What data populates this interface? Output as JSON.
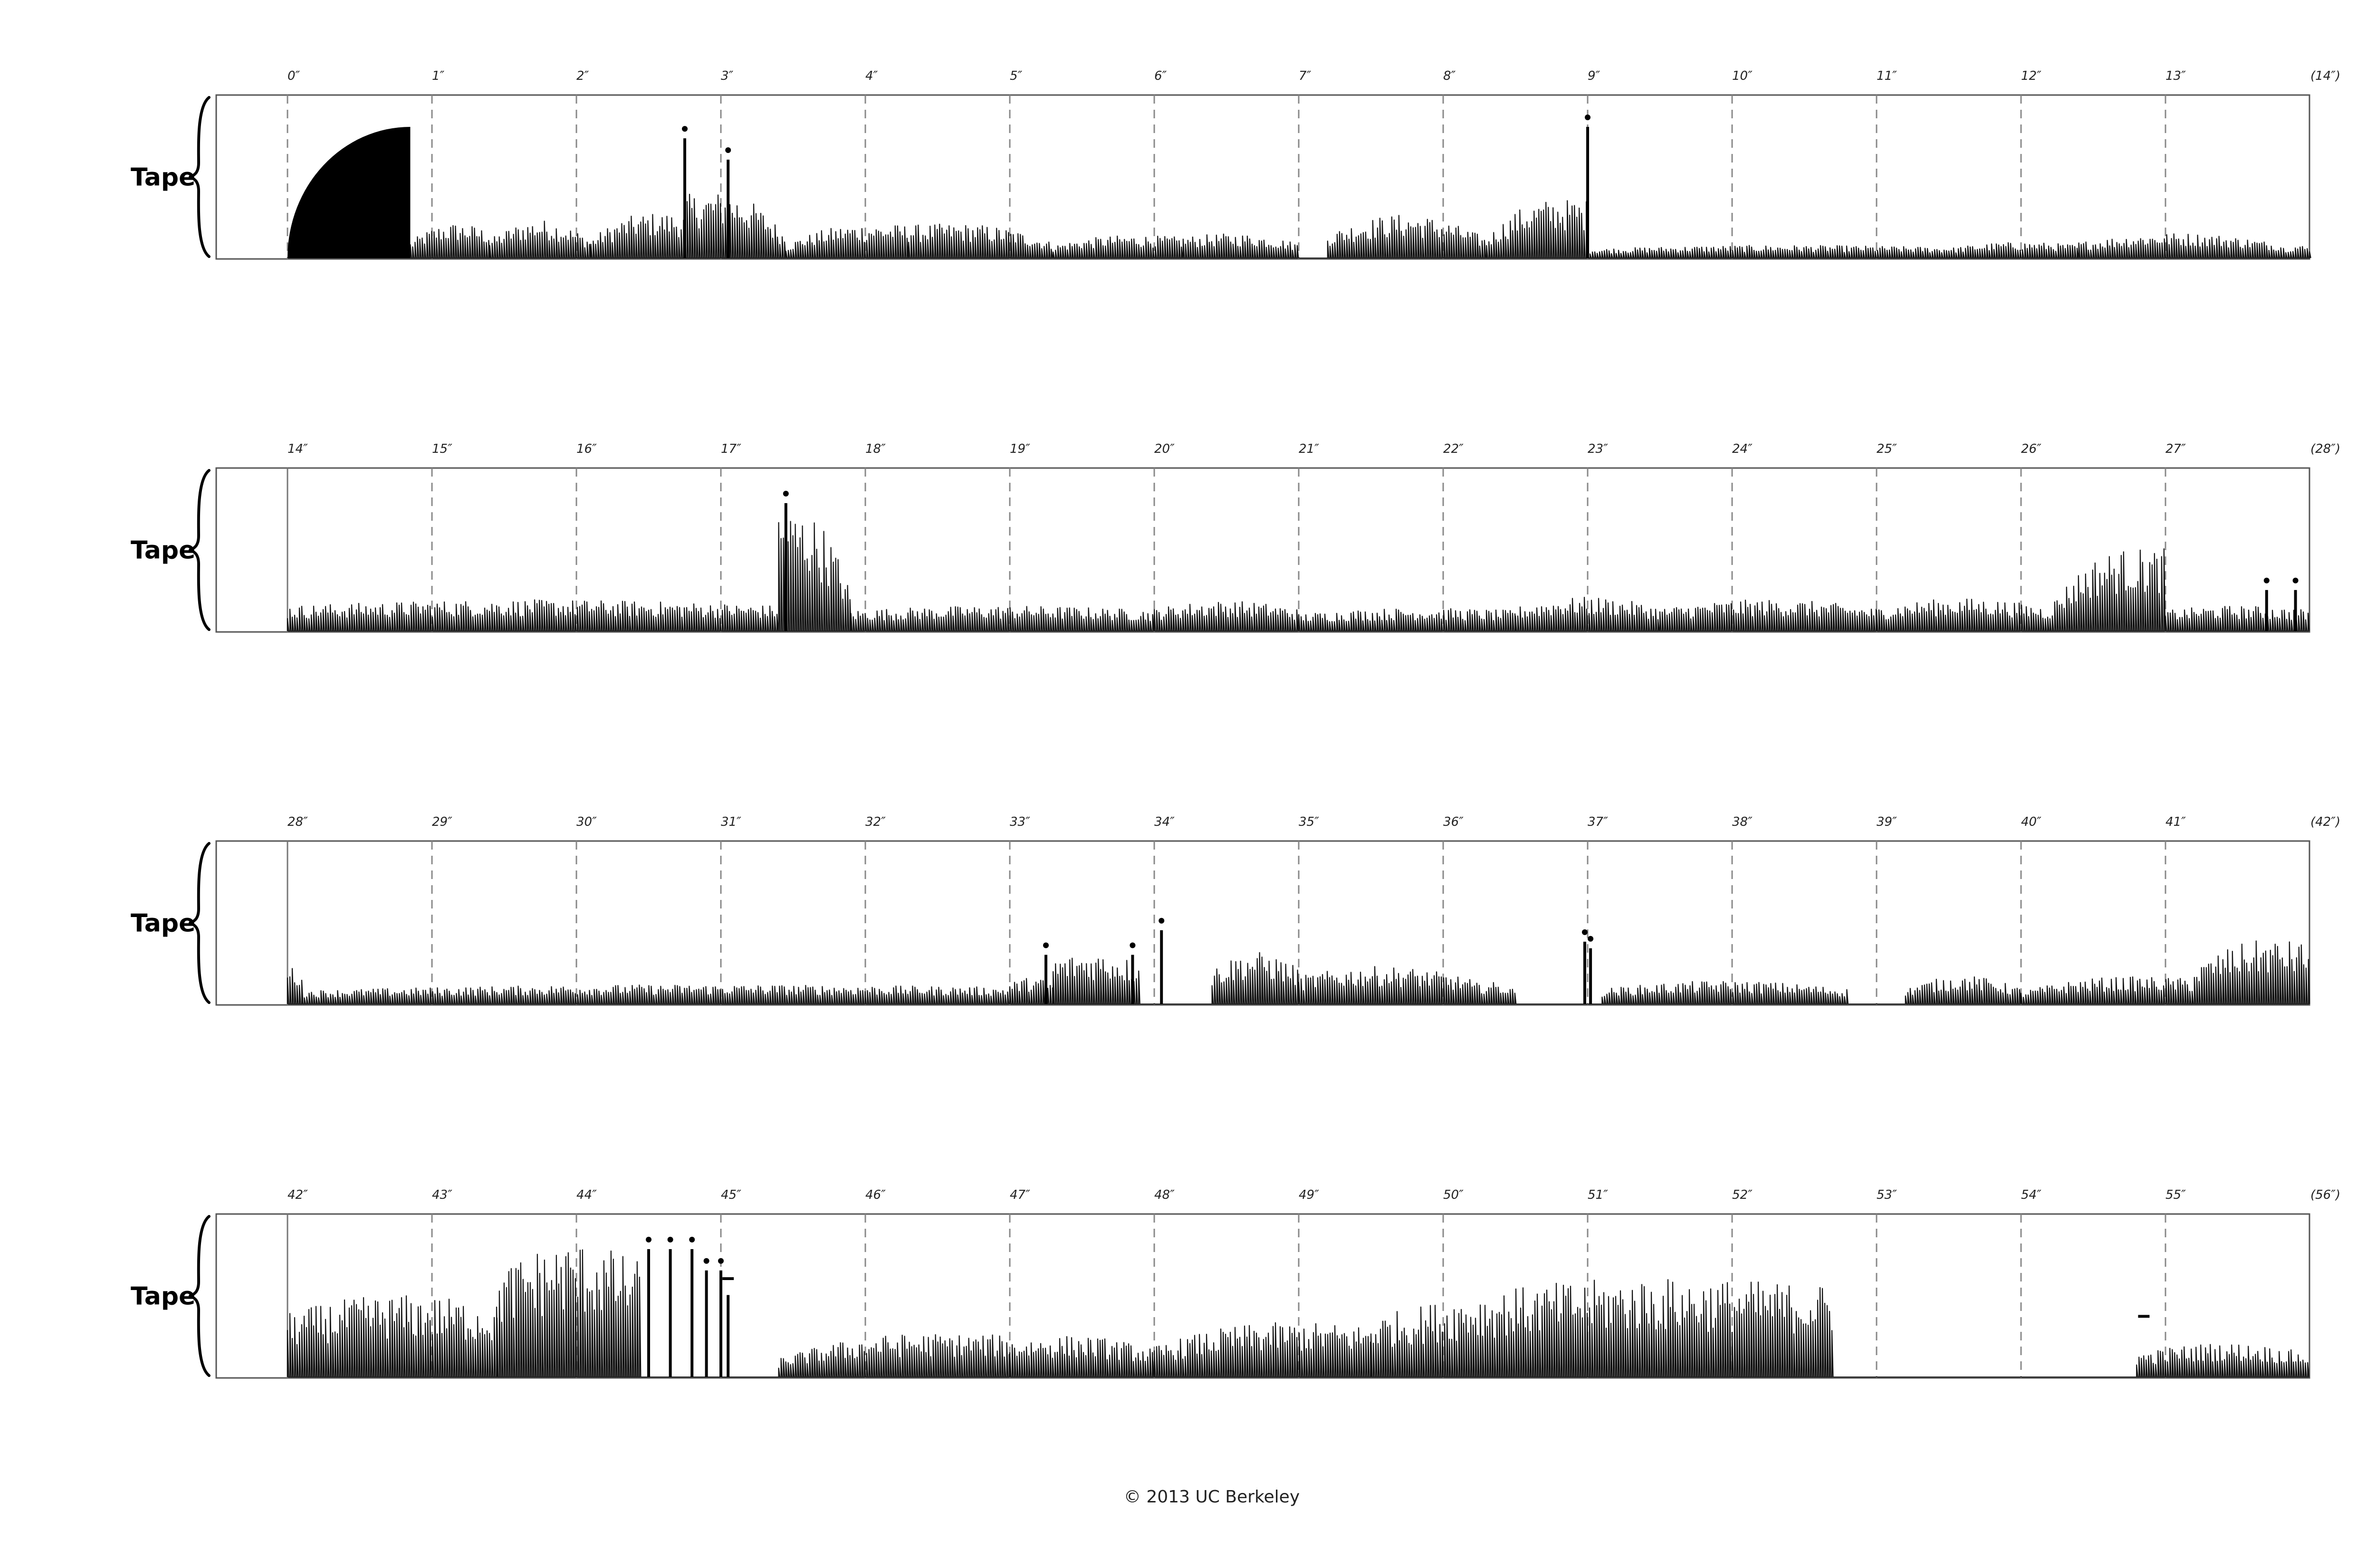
{
  "copyright": "© 2013 UC Berkeley",
  "staff_label": "Tape",
  "systems": [
    {
      "label": "Tape",
      "ticks": [
        "0″",
        "1″",
        "2″",
        "3″",
        "4″",
        "5″",
        "6″",
        "7″",
        "8″",
        "9″",
        "10″",
        "11″",
        "12″",
        "13″"
      ],
      "end_label": "(14″)"
    },
    {
      "label": "Tape",
      "ticks": [
        "14″",
        "15″",
        "16″",
        "17″",
        "18″",
        "19″",
        "20″",
        "21″",
        "22″",
        "23″",
        "24″",
        "25″",
        "26″",
        "27″"
      ],
      "end_label": "(28″)"
    },
    {
      "label": "Tape",
      "ticks": [
        "28″",
        "29″",
        "30″",
        "31″",
        "32″",
        "33″",
        "34″",
        "35″",
        "36″",
        "37″",
        "38″",
        "39″",
        "40″",
        "41″"
      ],
      "end_label": "(42″)"
    },
    {
      "label": "Tape",
      "ticks": [
        "42″",
        "43″",
        "44″",
        "45″",
        "46″",
        "47″",
        "48″",
        "49″",
        "50″",
        "51″",
        "52″",
        "53″",
        "54″",
        "55″"
      ],
      "end_label": "(56″)"
    }
  ]
}
